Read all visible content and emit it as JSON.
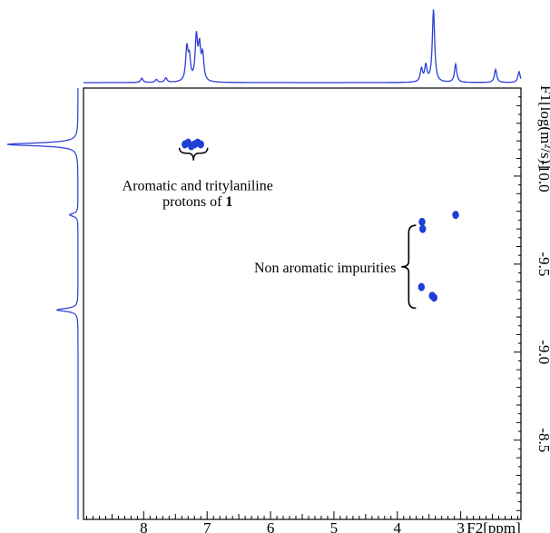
{
  "chart_data": {
    "type": "scatter",
    "subtype": "2D DOSY NMR spectrum",
    "x_axis": {
      "label": "F2[ppm]",
      "range": [
        8.95,
        2.05
      ],
      "reversed": true,
      "tick_labels": [
        "8",
        "7",
        "6",
        "5",
        "4",
        "3"
      ],
      "tick_values": [
        8,
        7,
        6,
        5,
        4,
        3
      ]
    },
    "y_axis": {
      "label": "F1[log(m²/s)]",
      "range": [
        -10.5,
        -8.05
      ],
      "position": "right",
      "tick_labels": [
        "-10.0",
        "-9.5",
        "-9.0",
        "-8.5"
      ],
      "tick_values": [
        -10.0,
        -9.5,
        -9.0,
        -8.5
      ]
    },
    "contours": [
      {
        "name": "aromatic",
        "x": [
          7.35,
          7.3,
          7.25,
          7.2,
          7.15,
          7.1
        ],
        "y": [
          -10.18,
          -10.19,
          -10.17,
          -10.18,
          -10.19,
          -10.18
        ],
        "color": "#1f3fd6"
      },
      {
        "name": "impurity-1",
        "x": [
          3.61,
          3.6
        ],
        "y": [
          -9.74,
          -9.7
        ],
        "color": "#1f3fd6"
      },
      {
        "name": "impurity-2",
        "x": [
          3.08
        ],
        "y": [
          -9.78
        ],
        "color": "#1f3fd6"
      },
      {
        "name": "impurity-3",
        "x": [
          3.62
        ],
        "y": [
          -9.37
        ],
        "color": "#1f3fd6"
      },
      {
        "name": "impurity-4",
        "x": [
          3.45,
          3.42
        ],
        "y": [
          -9.32,
          -9.31
        ],
        "color": "#1f3fd6"
      }
    ],
    "annotations": [
      {
        "text": "Aromatic and tritylaniline",
        "x": 7.15,
        "y": -9.95
      },
      {
        "text": "protons of",
        "bold_suffix": "1",
        "x": 7.15,
        "y": -9.88
      },
      {
        "text": "Non aromatic impurities",
        "x": 5.5,
        "y": -9.55
      }
    ],
    "top_projection_peaks": [
      {
        "ppm": 8.03,
        "h": 0.06
      },
      {
        "ppm": 7.8,
        "h": 0.04
      },
      {
        "ppm": 7.65,
        "h": 0.06
      },
      {
        "ppm": 7.32,
        "h": 0.45
      },
      {
        "ppm": 7.28,
        "h": 0.3
      },
      {
        "ppm": 7.17,
        "h": 0.6
      },
      {
        "ppm": 7.12,
        "h": 0.45
      },
      {
        "ppm": 7.07,
        "h": 0.35
      },
      {
        "ppm": 3.62,
        "h": 0.18
      },
      {
        "ppm": 3.55,
        "h": 0.22
      },
      {
        "ppm": 3.43,
        "h": 1.0
      },
      {
        "ppm": 3.08,
        "h": 0.25
      },
      {
        "ppm": 2.45,
        "h": 0.18
      },
      {
        "ppm": 2.08,
        "h": 0.15
      }
    ],
    "left_projection_peaks": [
      {
        "logD": -10.18,
        "h": 1.0
      },
      {
        "logD": -9.78,
        "h": 0.12
      },
      {
        "logD": -9.24,
        "h": 0.3
      }
    ],
    "colors": {
      "spectrum": "#2a3fd8",
      "contour": "#1f3fd6",
      "frame": "#000000"
    },
    "grid": false
  }
}
